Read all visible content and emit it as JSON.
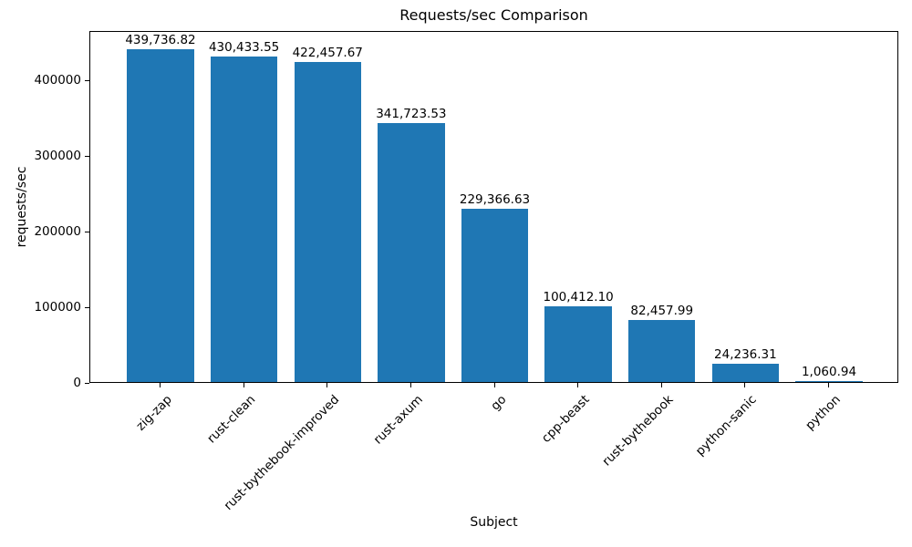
{
  "chart_data": {
    "type": "bar",
    "title": "Requests/sec Comparison",
    "xlabel": "Subject",
    "ylabel": "requests/sec",
    "categories": [
      "zig-zap",
      "rust-clean",
      "rust-bythebook-improved",
      "rust-axum",
      "go",
      "cpp-beast",
      "rust-bythebook",
      "python-sanic",
      "python"
    ],
    "values": [
      439736.82,
      430433.55,
      422457.67,
      341723.53,
      229366.63,
      100412.1,
      82457.99,
      24236.31,
      1060.94
    ],
    "value_labels": [
      "439,736.82",
      "430,433.55",
      "422,457.67",
      "341,723.53",
      "229,366.63",
      "100,412.10",
      "82,457.99",
      "24,236.31",
      "1,060.94"
    ],
    "yticks": [
      0,
      100000,
      200000,
      300000,
      400000
    ],
    "ytick_labels": [
      "0",
      "100000",
      "200000",
      "300000",
      "400000"
    ],
    "ylim": [
      0,
      465000
    ],
    "grid": false,
    "legend": null,
    "x_tick_rotation_deg": 45,
    "bar_color": "#1f77b4",
    "text_color": "#000000",
    "background_color": "#ffffff"
  }
}
